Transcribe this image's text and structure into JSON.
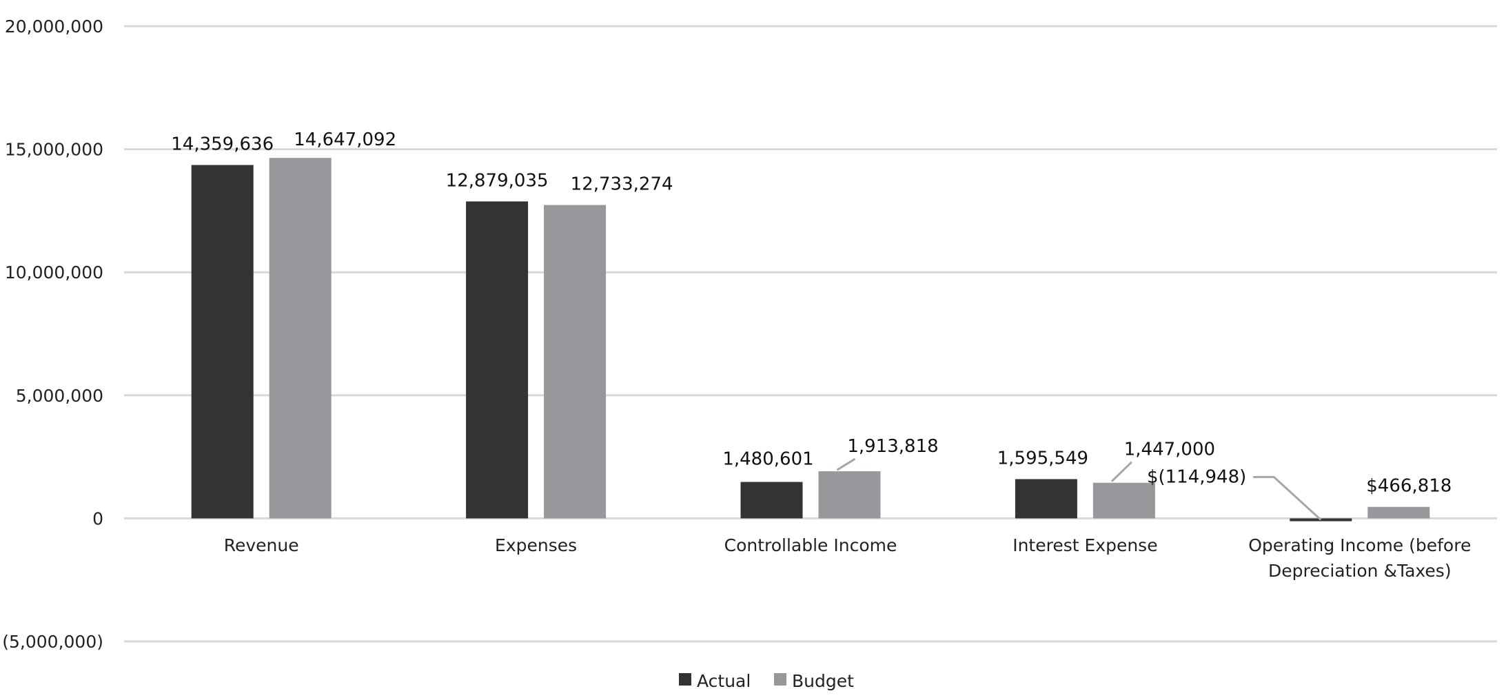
{
  "chart_data": {
    "type": "bar",
    "categories": [
      "Revenue",
      "Expenses",
      "Controllable Income",
      "Interest Expense",
      "Operating Income (before\nDepreciation &Taxes)"
    ],
    "series": [
      {
        "name": "Actual",
        "color": "#333333",
        "values": [
          14359636,
          12879035,
          1480601,
          1595549,
          -114948
        ],
        "labels": [
          "14,359,636",
          "12,879,035",
          "1,480,601",
          "1,595,549",
          "$(114,948)"
        ]
      },
      {
        "name": "Budget",
        "color": "#97989b",
        "values": [
          14647092,
          12733274,
          1913818,
          1447000,
          466818
        ],
        "labels": [
          "14,647,092",
          "12,733,274",
          "1,913,818",
          "1,447,000",
          "$466,818"
        ]
      }
    ],
    "title": "",
    "xlabel": "",
    "ylabel": "",
    "ylim": [
      -5000000,
      20000000
    ],
    "yticks": [
      {
        "value": 20000000,
        "label": "20,000,000"
      },
      {
        "value": 15000000,
        "label": "15,000,000"
      },
      {
        "value": 10000000,
        "label": "10,000,000"
      },
      {
        "value": 5000000,
        "label": "5,000,000"
      },
      {
        "value": 0,
        "label": "0"
      },
      {
        "value": -5000000,
        "label": "(5,000,000)"
      }
    ],
    "grid": true,
    "legend_position": "bottom"
  }
}
